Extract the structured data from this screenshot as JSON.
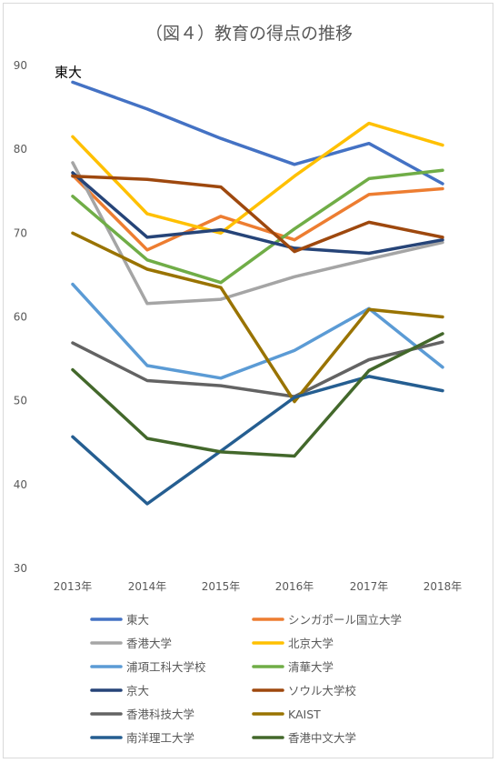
{
  "chart_data": {
    "type": "line",
    "title": "（図４）教育の得点の推移",
    "xlabel": "",
    "ylabel": "",
    "categories": [
      "2013年",
      "2014年",
      "2015年",
      "2016年",
      "2017年",
      "2018年"
    ],
    "ylim": [
      30,
      90
    ],
    "yticks": [
      30,
      40,
      50,
      60,
      70,
      80,
      90
    ],
    "grid": false,
    "legend_position": "bottom",
    "annotation": "東大",
    "series": [
      {
        "name": "東大",
        "color": "#4472C4",
        "values": [
          88.0,
          84.8,
          81.3,
          78.2,
          80.7,
          75.9
        ]
      },
      {
        "name": "シンガポール国立大学",
        "color": "#ED7D31",
        "values": [
          76.9,
          68.0,
          72.0,
          69.2,
          74.6,
          75.3
        ]
      },
      {
        "name": "香港大学",
        "color": "#A5A5A5",
        "values": [
          78.4,
          61.6,
          62.1,
          64.8,
          66.9,
          68.9
        ]
      },
      {
        "name": "北京大学",
        "color": "#FFC000",
        "values": [
          81.5,
          72.3,
          70.0,
          76.8,
          83.1,
          80.5
        ]
      },
      {
        "name": "浦項工科大学校",
        "color": "#5B9BD5",
        "values": [
          63.9,
          54.2,
          52.7,
          56.0,
          61.0,
          54.0
        ]
      },
      {
        "name": "清華大学",
        "color": "#70AD47",
        "values": [
          74.4,
          66.8,
          64.1,
          70.5,
          76.5,
          77.5
        ]
      },
      {
        "name": "京大",
        "color": "#264478",
        "values": [
          77.2,
          69.5,
          70.4,
          68.2,
          67.6,
          69.2
        ]
      },
      {
        "name": "ソウル大学校",
        "color": "#9E480E",
        "values": [
          76.8,
          76.4,
          75.5,
          67.8,
          71.3,
          69.5
        ]
      },
      {
        "name": "香港科技大学",
        "color": "#636363",
        "values": [
          56.9,
          52.4,
          51.8,
          50.5,
          54.9,
          57.0
        ]
      },
      {
        "name": "KAIST",
        "color": "#997300",
        "values": [
          70.0,
          65.7,
          63.5,
          49.9,
          60.9,
          60.0
        ]
      },
      {
        "name": "南洋理工大学",
        "color": "#255E91",
        "values": [
          45.7,
          37.7,
          44.0,
          50.4,
          52.9,
          51.2
        ]
      },
      {
        "name": "香港中文大学",
        "color": "#43682B",
        "values": [
          53.7,
          45.5,
          43.9,
          43.4,
          53.6,
          58.0
        ]
      }
    ]
  }
}
